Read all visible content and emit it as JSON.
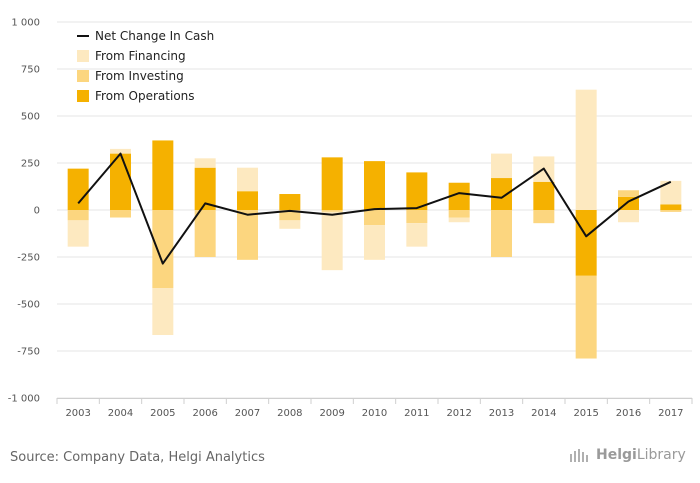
{
  "chart_data": {
    "type": "bar",
    "stacked": true,
    "title": "",
    "xlabel": "",
    "ylabel": "",
    "ylim": [
      -1000,
      1000
    ],
    "yticks": [
      -1000,
      -750,
      -500,
      -250,
      0,
      250,
      500,
      750,
      1000
    ],
    "ytick_labels": [
      "-1 000",
      "-750",
      "-500",
      "-250",
      "0",
      "250",
      "500",
      "750",
      "1 000"
    ],
    "categories": [
      "2003",
      "2004",
      "2005",
      "2006",
      "2007",
      "2008",
      "2009",
      "2010",
      "2011",
      "2012",
      "2013",
      "2014",
      "2015",
      "2016",
      "2017"
    ],
    "series": [
      {
        "name": "From Operations",
        "type": "bar",
        "color": "#f5b100",
        "values": [
          220,
          300,
          370,
          225,
          100,
          85,
          280,
          260,
          200,
          145,
          170,
          150,
          -350,
          70,
          30
        ]
      },
      {
        "name": "From Investing",
        "type": "bar",
        "color": "#fcd67f",
        "values": [
          -55,
          -40,
          -415,
          -250,
          -265,
          -55,
          -10,
          -80,
          -70,
          -40,
          -250,
          -70,
          -440,
          35,
          -10
        ]
      },
      {
        "name": "From Financing",
        "type": "bar",
        "color": "#fde9c0",
        "values": [
          -140,
          25,
          -250,
          50,
          125,
          -45,
          -310,
          -185,
          -125,
          -25,
          130,
          135,
          640,
          -65,
          125
        ]
      },
      {
        "name": "Net Change In Cash",
        "type": "line",
        "color": "#111111",
        "values": [
          35,
          300,
          -285,
          35,
          -25,
          -5,
          -25,
          5,
          10,
          90,
          65,
          220,
          -140,
          45,
          150
        ]
      }
    ],
    "legend_position": "top-left",
    "grid": true
  },
  "legend": {
    "items": [
      "Net Change In Cash",
      "From Financing",
      "From Investing",
      "From Operations"
    ]
  },
  "footer": {
    "source": "Source: Company Data, Helgi Analytics",
    "logo_brand": "Helgi",
    "logo_suffix": "Library"
  }
}
